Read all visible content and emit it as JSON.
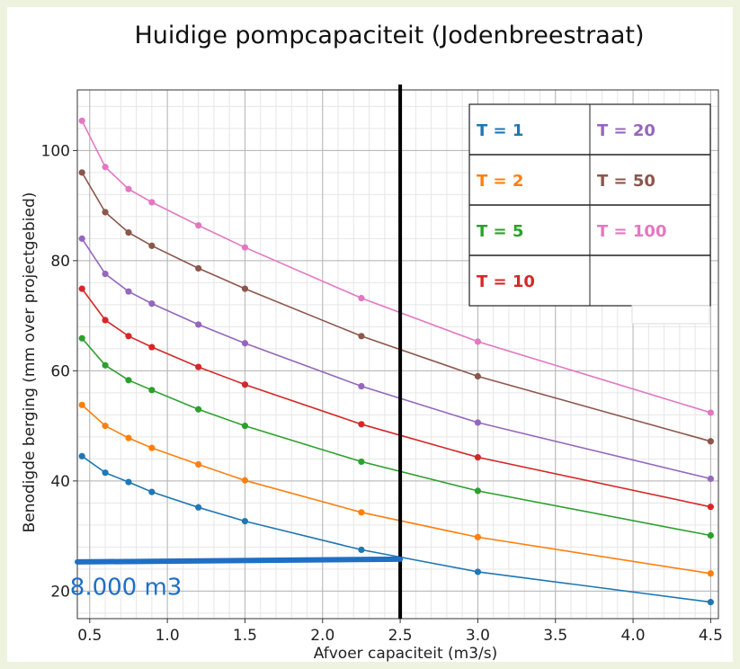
{
  "chart_data": {
    "type": "line",
    "title": "Huidige pompcapaciteit (Jodenbreestraat)",
    "xlabel": "Afvoer capaciteit (m3/s)",
    "ylabel": "Benodigde berging (mm over projectgebied)",
    "xlim": [
      0.42,
      4.55
    ],
    "ylim": [
      15,
      111
    ],
    "x_ticks": [
      0.5,
      1.0,
      1.5,
      2.0,
      2.5,
      3.0,
      3.5,
      4.0,
      4.5
    ],
    "x_tick_labels": [
      "0.5",
      "1.0",
      "1.5",
      "2.0",
      "2.5",
      "3.0",
      "3.5",
      "4.0",
      "4.5"
    ],
    "y_ticks": [
      20,
      40,
      60,
      80,
      100
    ],
    "y_tick_labels": [
      "20",
      "40",
      "60",
      "80",
      "100"
    ],
    "grid": true,
    "x": [
      0.45,
      0.6,
      0.75,
      0.9,
      1.2,
      1.5,
      2.25,
      3.0,
      4.5
    ],
    "series": [
      {
        "name": "T = 1",
        "color": "#1f77b4",
        "values": [
          44.5,
          41.5,
          39.8,
          38.0,
          35.2,
          32.7,
          27.5,
          23.5,
          18.0
        ]
      },
      {
        "name": "T = 2",
        "color": "#ff7f0e",
        "values": [
          53.8,
          50.0,
          47.8,
          46.0,
          43.0,
          40.1,
          34.3,
          29.8,
          23.2
        ]
      },
      {
        "name": "T = 5",
        "color": "#2ca02c",
        "values": [
          65.9,
          61.0,
          58.3,
          56.5,
          53.0,
          50.0,
          43.5,
          38.2,
          30.1
        ]
      },
      {
        "name": "T = 10",
        "color": "#d62728",
        "values": [
          74.9,
          69.2,
          66.3,
          64.3,
          60.7,
          57.5,
          50.3,
          44.3,
          35.3
        ]
      },
      {
        "name": "T = 20",
        "color": "#9467bd",
        "values": [
          84.0,
          77.6,
          74.4,
          72.2,
          68.4,
          65.0,
          57.2,
          50.6,
          40.4
        ]
      },
      {
        "name": "T = 50",
        "color": "#8c564b",
        "values": [
          96.0,
          88.8,
          85.1,
          82.7,
          78.6,
          74.9,
          66.3,
          59.0,
          47.2
        ]
      },
      {
        "name": "T = 100",
        "color": "#e377c2",
        "values": [
          105.4,
          97.0,
          93.0,
          90.6,
          86.4,
          82.4,
          73.2,
          65.3,
          52.4
        ]
      }
    ],
    "legend_placement": "top-right",
    "vertical_line": {
      "x": 2.5,
      "color": "#000000"
    },
    "highlight_line": {
      "x_from": 0.42,
      "x_to": 2.5,
      "y_from": 25.3,
      "y_to": 25.8,
      "color": "#1f6fc5"
    },
    "annotation": {
      "text": "8.000 m3",
      "x": 0.72,
      "y": 21,
      "color": "#1f6fc5"
    }
  }
}
